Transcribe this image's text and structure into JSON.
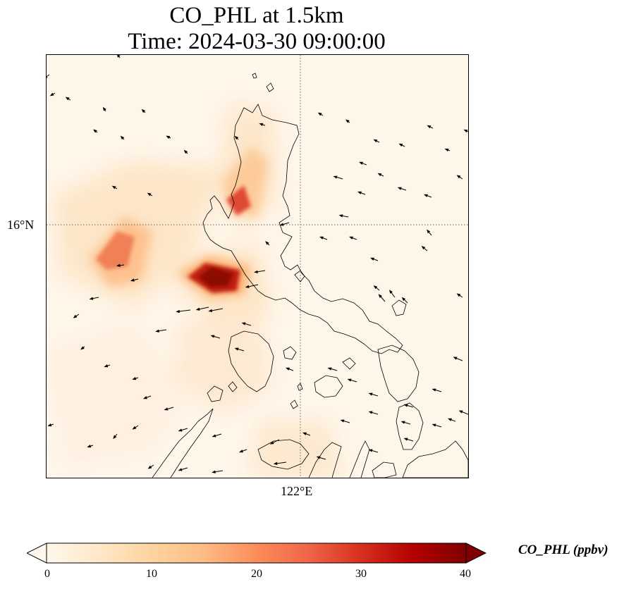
{
  "title": {
    "line1": "CO_PHL at 1.5km",
    "line2": "Time: 2024-03-30 09:00:00"
  },
  "map": {
    "variable": "CO_PHL",
    "level": "1.5km",
    "gridlines": {
      "latitude": "16°N",
      "longitude": "122°E",
      "style": "dotted"
    },
    "features": [
      "coastline",
      "wind-vectors",
      "concentration-field"
    ]
  },
  "colorbar": {
    "label": "CO_PHL (ppbv)",
    "ticks": [
      "0",
      "10",
      "20",
      "30",
      "40"
    ],
    "range": [
      0,
      40
    ],
    "extend": "both",
    "colormap": "OrRd",
    "colors": [
      "#fff7ec",
      "#fee8c8",
      "#fdd49e",
      "#fdbb84",
      "#fc8d59",
      "#ef6548",
      "#d7301f",
      "#b30000",
      "#7f0000"
    ]
  }
}
